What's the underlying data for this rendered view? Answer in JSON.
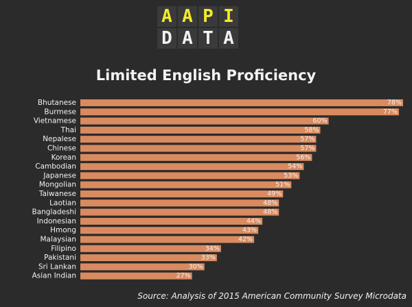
{
  "logo": {
    "top": [
      "A",
      "A",
      "P",
      "I"
    ],
    "bottom": [
      "D",
      "A",
      "T",
      "A"
    ]
  },
  "source": "Source: Analysis of 2015 American Community Survey Microdata",
  "colors": {
    "bar": "#d98b5f",
    "text": "#f2f2f2",
    "logo_accent": "#f2ec2a",
    "background": "#2b2b2b"
  },
  "chart_data": {
    "type": "bar",
    "orientation": "horizontal",
    "title": "Limited English Proficiency",
    "categories": [
      "Bhutanese",
      "Burmese",
      "Vietnamese",
      "Thai",
      "Nepalese",
      "Chinese",
      "Korean",
      "Cambodian",
      "Japanese",
      "Mongolian",
      "Taiwanese",
      "Laotian",
      "Bangladeshi",
      "Indonesian",
      "Hmong",
      "Malaysian",
      "Filipino",
      "Pakistani",
      "Sri Lankan",
      "Asian Indian"
    ],
    "values": [
      78,
      77,
      60,
      58,
      57,
      57,
      56,
      54,
      53,
      51,
      49,
      48,
      48,
      44,
      43,
      42,
      34,
      33,
      30,
      27
    ],
    "labels": [
      "78%",
      "77%",
      "60%",
      "58%",
      "57%",
      "57%",
      "56%",
      "54%",
      "53%",
      "51%",
      "49%",
      "48%",
      "48%",
      "44%",
      "43%",
      "42%",
      "34%",
      "33%",
      "30%",
      "27%"
    ],
    "xlim": [
      0,
      78
    ]
  }
}
